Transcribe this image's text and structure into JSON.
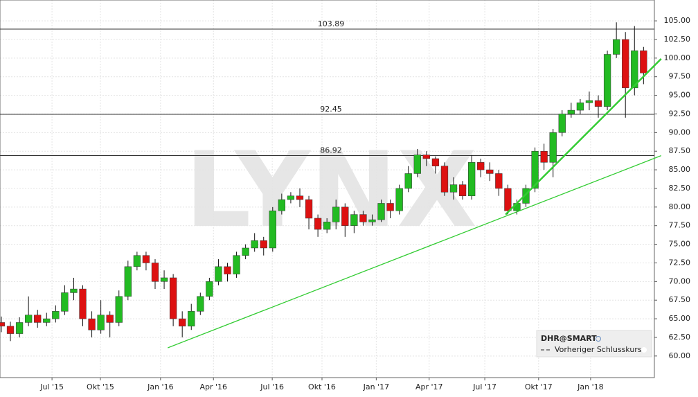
{
  "chart_data": {
    "type": "candlestick",
    "watermark": "LYNX",
    "legend": {
      "symbol": "DHR@SMART",
      "previous_close": "Vorheriger Schlusskurs"
    },
    "up_color": "#22bb22",
    "down_color": "#dd1111",
    "x": [
      0,
      2,
      4,
      6,
      8,
      10,
      12,
      14,
      16,
      18,
      20,
      22,
      24,
      26,
      28,
      30,
      32,
      34,
      36,
      38,
      40,
      42,
      44,
      46,
      48,
      50,
      52,
      54,
      56,
      58,
      60,
      62,
      64,
      66,
      68,
      70,
      72,
      74,
      76,
      78,
      80,
      82,
      84,
      86,
      88,
      90,
      92,
      94,
      96,
      98,
      100,
      102,
      104,
      106,
      108,
      110,
      112,
      114,
      116,
      118,
      120,
      122,
      124,
      126,
      128,
      130,
      132,
      134,
      136,
      138,
      140,
      142
    ],
    "open": [
      64.5,
      64.0,
      63.0,
      64.5,
      65.5,
      64.5,
      65.0,
      66.0,
      68.5,
      69.0,
      65.0,
      63.5,
      65.5,
      64.5,
      68.0,
      72.0,
      73.5,
      72.5,
      70.0,
      70.5,
      65.0,
      64.0,
      66.0,
      68.0,
      70.0,
      72.0,
      71.0,
      73.5,
      74.5,
      75.5,
      74.5,
      79.5,
      81.0,
      81.5,
      81.0,
      78.5,
      77.0,
      78.0,
      80.0,
      77.5,
      79.0,
      78.0,
      78.3,
      80.5,
      79.5,
      82.5,
      84.5,
      87.0,
      86.5,
      85.5,
      82.0,
      83.0,
      81.5,
      86.0,
      85.0,
      84.5,
      82.5,
      79.5,
      80.5,
      82.5,
      87.5,
      86.0,
      90.0,
      92.5,
      93.0,
      94.0,
      94.3,
      93.5,
      100.5,
      102.5,
      96.0,
      101.0
    ],
    "high": [
      65.3,
      64.6,
      65.2,
      68.0,
      66.2,
      65.8,
      66.8,
      69.5,
      70.5,
      69.5,
      66.0,
      67.5,
      66.0,
      68.8,
      72.8,
      74.0,
      74.0,
      73.0,
      71.5,
      71.0,
      66.0,
      67.0,
      68.5,
      70.5,
      73.0,
      72.5,
      74.0,
      75.0,
      76.5,
      76.0,
      80.0,
      81.8,
      82.0,
      82.5,
      81.5,
      79.0,
      78.5,
      81.0,
      80.5,
      79.5,
      79.5,
      79.0,
      81.0,
      81.0,
      83.0,
      85.5,
      87.8,
      87.5,
      86.8,
      86.0,
      84.0,
      83.5,
      87.0,
      86.5,
      86.0,
      85.0,
      83.0,
      81.0,
      83.0,
      88.0,
      88.5,
      90.5,
      93.0,
      94.0,
      94.5,
      95.5,
      95.0,
      101.0,
      104.8,
      103.5,
      104.3,
      101.5
    ],
    "low": [
      63.2,
      62.0,
      62.5,
      64.0,
      63.8,
      64.0,
      64.5,
      65.5,
      67.5,
      64.0,
      62.5,
      63.0,
      62.5,
      64.0,
      67.5,
      71.5,
      71.5,
      69.0,
      69.0,
      64.0,
      62.5,
      63.5,
      65.5,
      67.5,
      69.5,
      70.0,
      70.5,
      73.0,
      74.0,
      73.5,
      74.0,
      79.0,
      80.5,
      80.0,
      77.0,
      76.0,
      76.5,
      77.0,
      76.0,
      76.5,
      77.5,
      77.5,
      78.0,
      78.5,
      79.0,
      82.0,
      84.0,
      85.5,
      84.5,
      81.5,
      81.0,
      81.0,
      81.0,
      84.0,
      83.5,
      81.5,
      79.0,
      79.0,
      80.0,
      82.0,
      85.0,
      84.0,
      89.5,
      92.0,
      92.5,
      93.0,
      92.0,
      93.0,
      100.0,
      92.0,
      95.0,
      96.5
    ],
    "close": [
      64.0,
      63.0,
      64.5,
      65.5,
      64.5,
      65.0,
      66.0,
      68.5,
      69.0,
      65.0,
      63.5,
      65.5,
      64.5,
      68.0,
      72.0,
      73.5,
      72.5,
      70.0,
      70.5,
      65.0,
      64.0,
      66.0,
      68.0,
      70.0,
      72.0,
      71.0,
      73.5,
      74.5,
      75.5,
      74.5,
      79.5,
      81.0,
      81.5,
      81.0,
      78.5,
      77.0,
      78.0,
      80.0,
      77.5,
      79.0,
      78.0,
      78.3,
      80.5,
      79.5,
      82.5,
      84.5,
      87.0,
      86.5,
      85.5,
      82.0,
      83.0,
      81.5,
      86.0,
      85.0,
      84.5,
      82.5,
      79.5,
      80.5,
      82.5,
      87.5,
      86.0,
      90.0,
      92.5,
      93.0,
      94.0,
      94.3,
      93.5,
      100.5,
      102.5,
      96.0,
      101.0,
      98.0
    ],
    "xlim": [
      -0.3,
      144.4
    ],
    "ylim": [
      57.1,
      107.8
    ],
    "xticks": [
      {
        "value": 11.2,
        "label": "Jul '15"
      },
      {
        "value": 21.9,
        "label": "Okt '15"
      },
      {
        "value": 35.2,
        "label": "Jan '16"
      },
      {
        "value": 46.9,
        "label": "Apr '16"
      },
      {
        "value": 59.9,
        "label": "Jul '16"
      },
      {
        "value": 70.9,
        "label": "Okt '16"
      },
      {
        "value": 82.9,
        "label": "Jan '17"
      },
      {
        "value": 94.6,
        "label": "Apr '17"
      },
      {
        "value": 106.9,
        "label": "Jul '17"
      },
      {
        "value": 118.8,
        "label": "Okt '17"
      },
      {
        "value": 130.3,
        "label": "Jan '18"
      }
    ],
    "yticks": [
      {
        "value": 60,
        "label": "60.00"
      },
      {
        "value": 62.5,
        "label": "62.50"
      },
      {
        "value": 65,
        "label": "65.00"
      },
      {
        "value": 67.5,
        "label": "67.50"
      },
      {
        "value": 70,
        "label": "70.00"
      },
      {
        "value": 72.5,
        "label": "72.50"
      },
      {
        "value": 75,
        "label": "75.00"
      },
      {
        "value": 77.5,
        "label": "77.50"
      },
      {
        "value": 80,
        "label": "80.00"
      },
      {
        "value": 82.5,
        "label": "82.50"
      },
      {
        "value": 85,
        "label": "85.00"
      },
      {
        "value": 87.5,
        "label": "87.50"
      },
      {
        "value": 90,
        "label": "90.00"
      },
      {
        "value": 92.5,
        "label": "92.50"
      },
      {
        "value": 95,
        "label": "95.00"
      },
      {
        "value": 97.5,
        "label": "97.50"
      },
      {
        "value": 100,
        "label": "100.00"
      },
      {
        "value": 102.5,
        "label": "102.50"
      },
      {
        "value": 105,
        "label": "105.00"
      }
    ],
    "grid": true,
    "hlines": [
      103.89,
      92.45,
      86.92
    ],
    "trendlines": [
      {
        "x": [
          36.8,
          145.9
        ],
        "y": [
          61.1,
          86.9
        ],
        "color": "#33cc33",
        "width": 1.3
      },
      {
        "x": [
          111.5,
          145.9
        ],
        "y": [
          79.0,
          99.9
        ],
        "color": "#33cc33",
        "width": 2.5
      }
    ]
  }
}
